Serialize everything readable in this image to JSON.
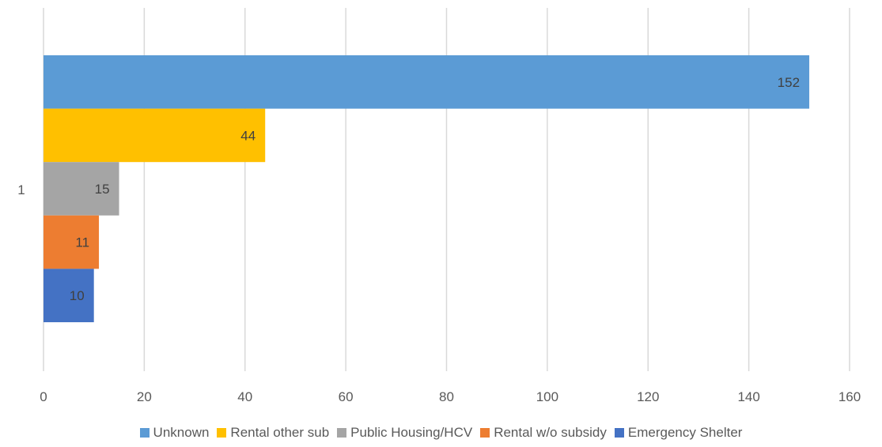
{
  "chart_data": {
    "type": "bar",
    "orientation": "horizontal",
    "categories": [
      "1"
    ],
    "series": [
      {
        "name": "Unknown",
        "values": [
          152
        ],
        "color": "#5B9BD5"
      },
      {
        "name": "Rental other sub",
        "values": [
          44
        ],
        "color": "#FFC000"
      },
      {
        "name": "Public Housing/HCV",
        "values": [
          15
        ],
        "color": "#A5A5A5"
      },
      {
        "name": "Rental w/o subsidy",
        "values": [
          11
        ],
        "color": "#ED7D31"
      },
      {
        "name": "Emergency Shelter",
        "values": [
          10
        ],
        "color": "#4472C4"
      }
    ],
    "x_ticks": [
      0,
      20,
      40,
      60,
      80,
      100,
      120,
      140,
      160
    ],
    "xlim": [
      0,
      160
    ],
    "grid": true,
    "legend_position": "bottom",
    "data_labels": true
  }
}
